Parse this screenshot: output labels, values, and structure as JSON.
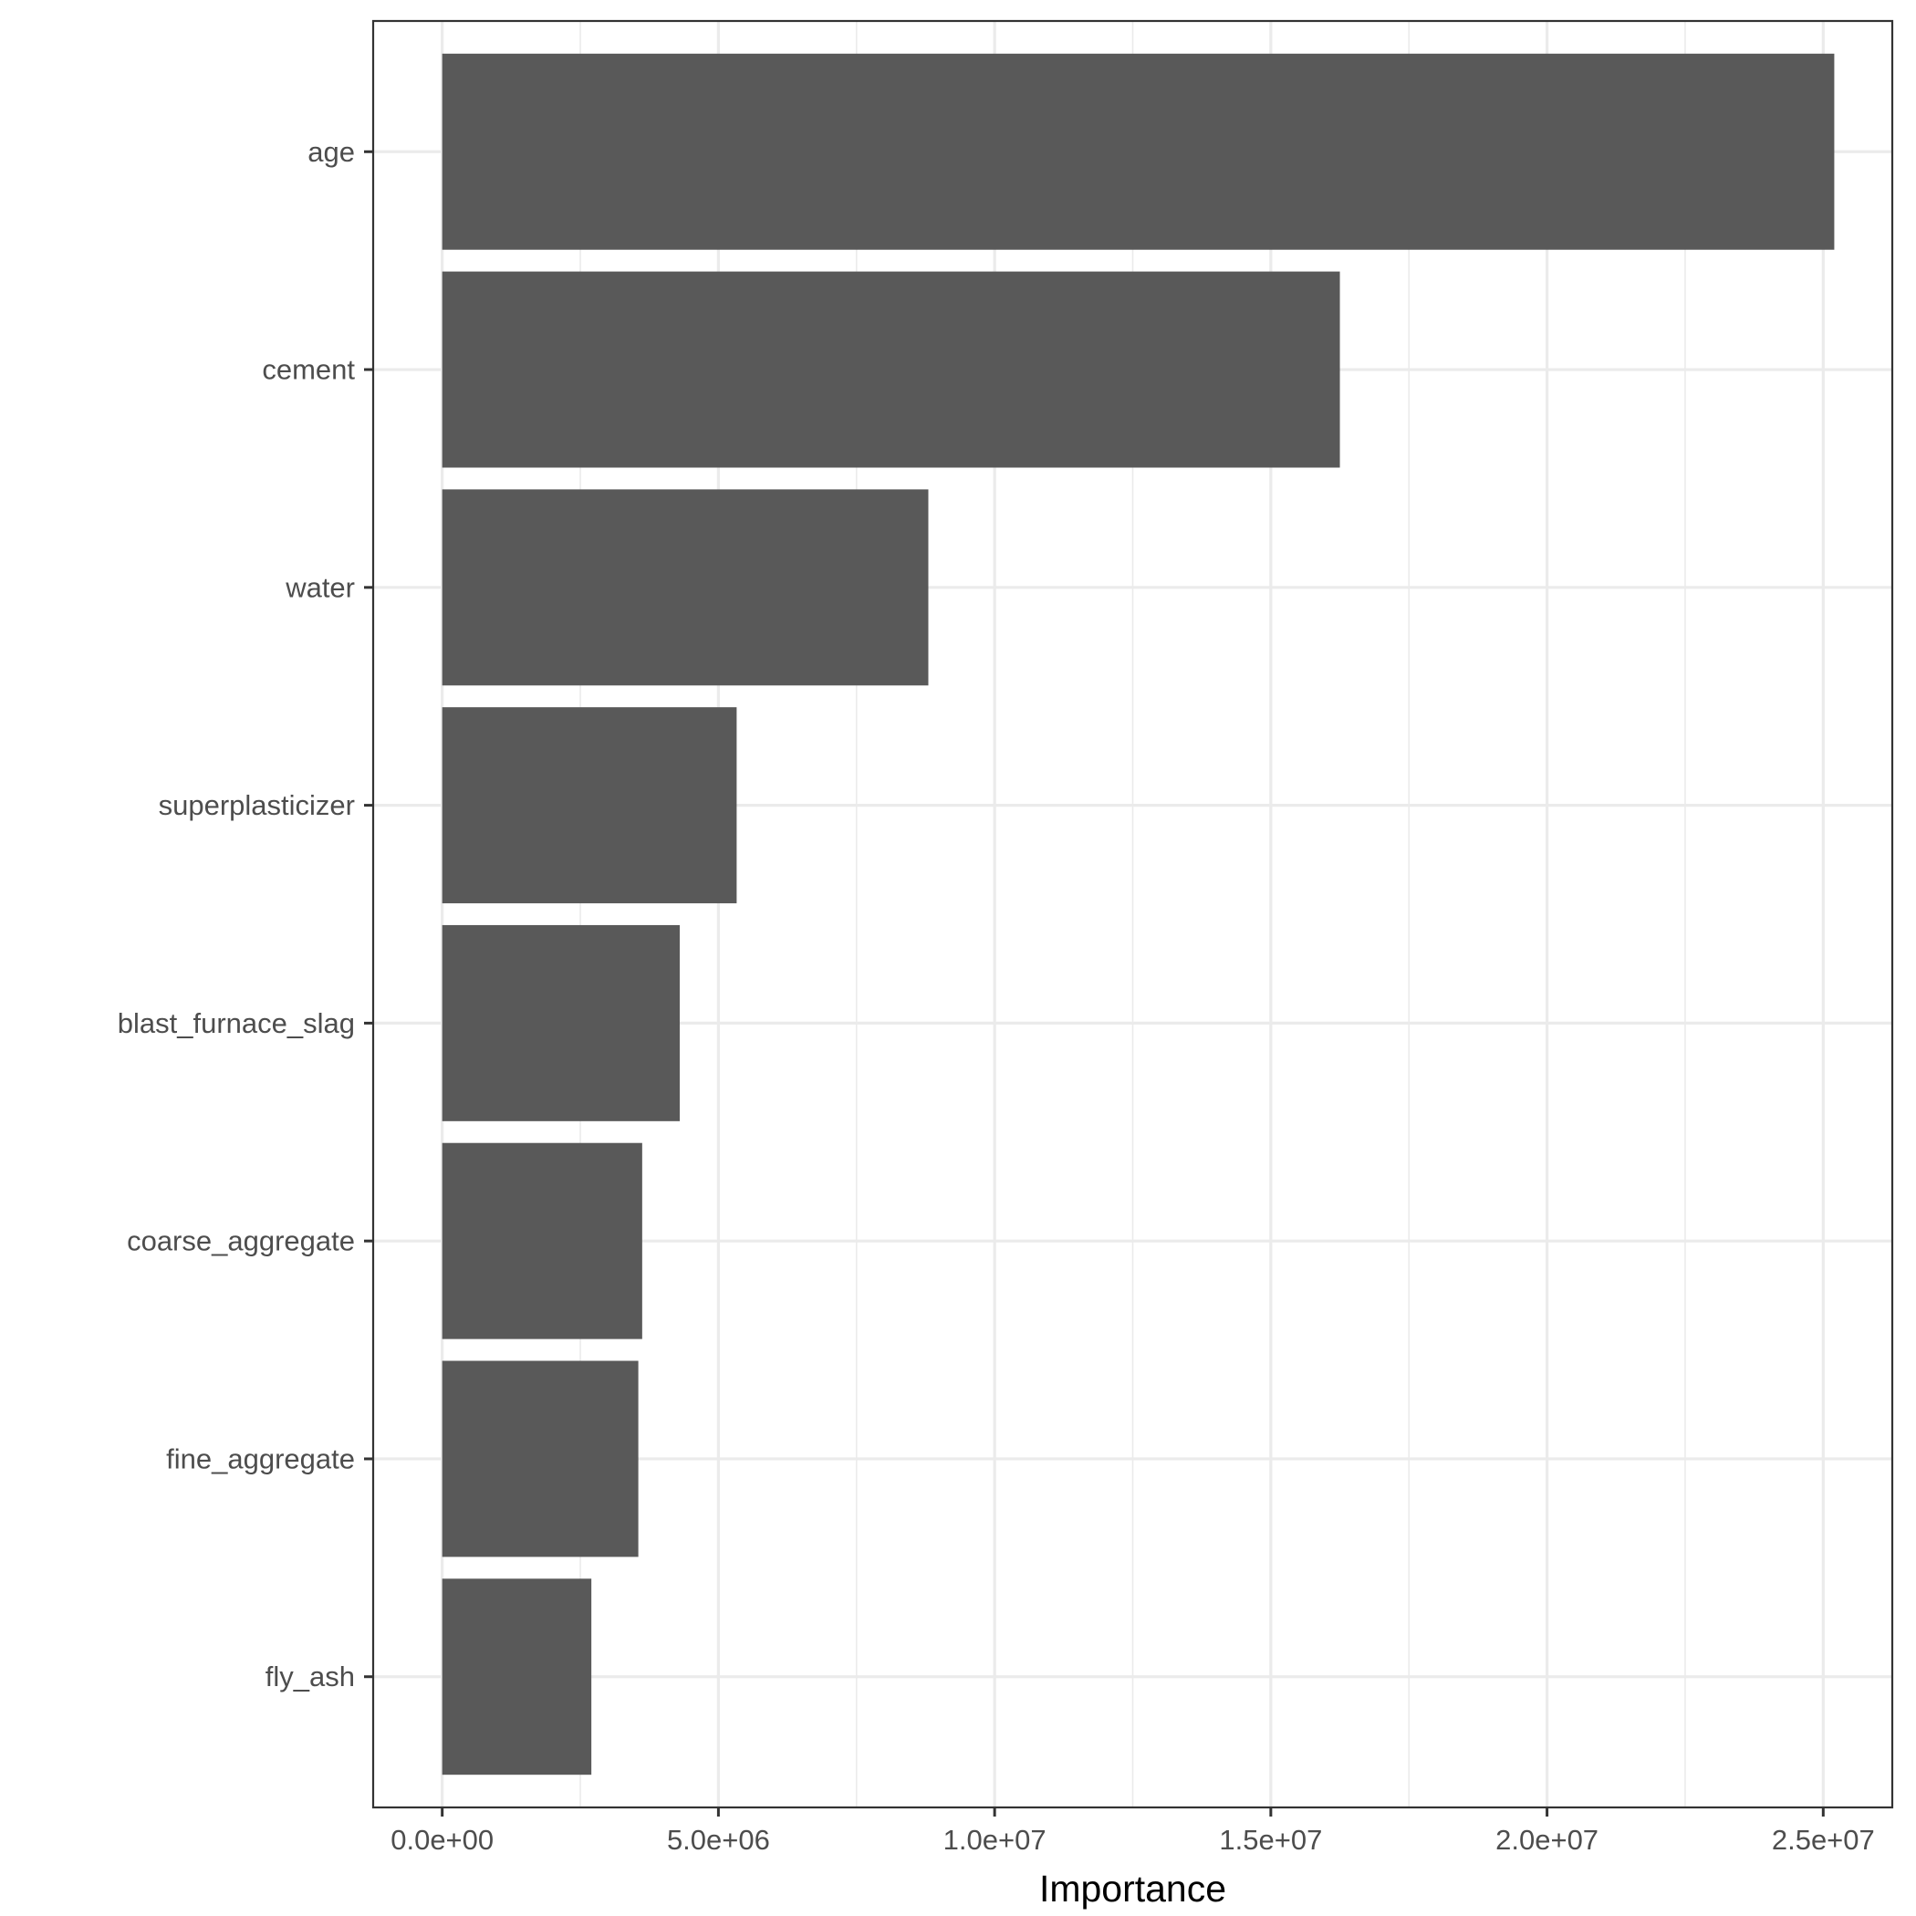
{
  "chart_data": {
    "type": "bar",
    "orientation": "horizontal",
    "categories": [
      "age",
      "cement",
      "water",
      "superplasticizer",
      "blast_furnace_slag",
      "coarse_aggregate",
      "fine_aggregate",
      "fly_ash"
    ],
    "values": [
      25200000,
      16250000,
      8800000,
      5330000,
      4300000,
      3620000,
      3550000,
      2700000
    ],
    "title": "",
    "xlabel": "Importance",
    "ylabel": "",
    "xlim": [
      -1250000,
      26250000
    ],
    "x_ticks": [
      0,
      5000000,
      10000000,
      15000000,
      20000000,
      25000000
    ],
    "x_tick_labels": [
      "0.0e+00",
      "5.0e+06",
      "1.0e+07",
      "1.5e+07",
      "2.0e+07",
      "2.5e+07"
    ],
    "grid": true,
    "legend": "none",
    "colors": {
      "bar": "#595959",
      "grid": "#ebebeb",
      "panel_border": "#333333",
      "tick_label": "#4d4d4d",
      "axis_title": "#000000"
    }
  }
}
